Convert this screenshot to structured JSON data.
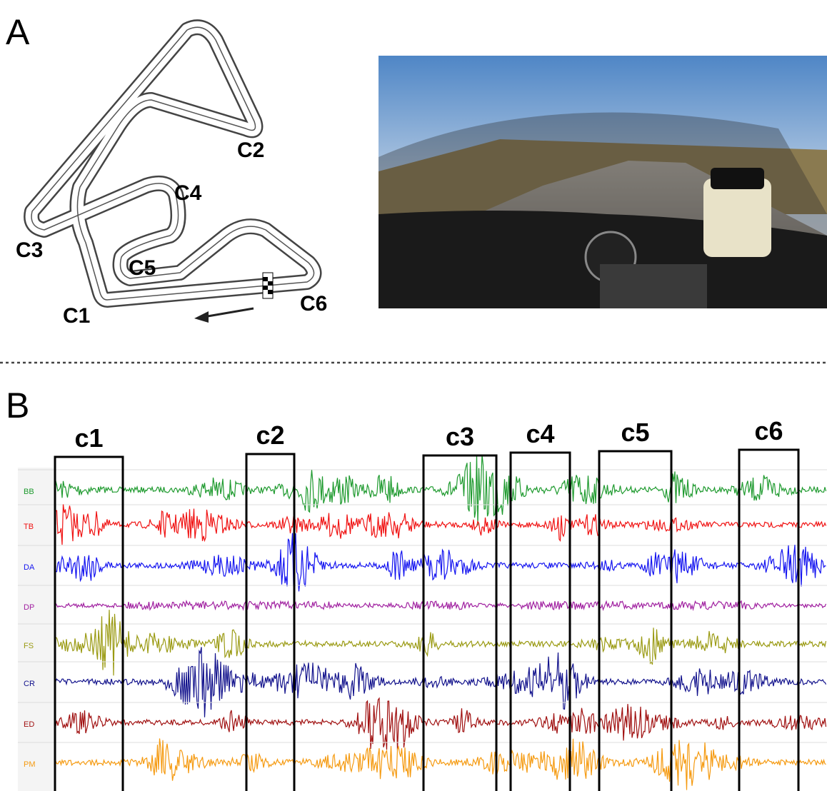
{
  "panel_a": {
    "label": "A",
    "track_labels": [
      "C1",
      "C2",
      "C3",
      "C4",
      "C5",
      "C6"
    ]
  },
  "panel_b": {
    "label": "B",
    "segments": [
      "c1",
      "c2",
      "c3",
      "c4",
      "c5",
      "c6"
    ],
    "channels": [
      {
        "name": "BB",
        "color": "#1e9a2e"
      },
      {
        "name": "TB",
        "color": "#f01212"
      },
      {
        "name": "DA",
        "color": "#1414f0"
      },
      {
        "name": "DP",
        "color": "#a020a0"
      },
      {
        "name": "FS",
        "color": "#9a9a12"
      },
      {
        "name": "CR",
        "color": "#12128c"
      },
      {
        "name": "ED",
        "color": "#a01010"
      },
      {
        "name": "PM",
        "color": "#f59a10"
      }
    ]
  }
}
